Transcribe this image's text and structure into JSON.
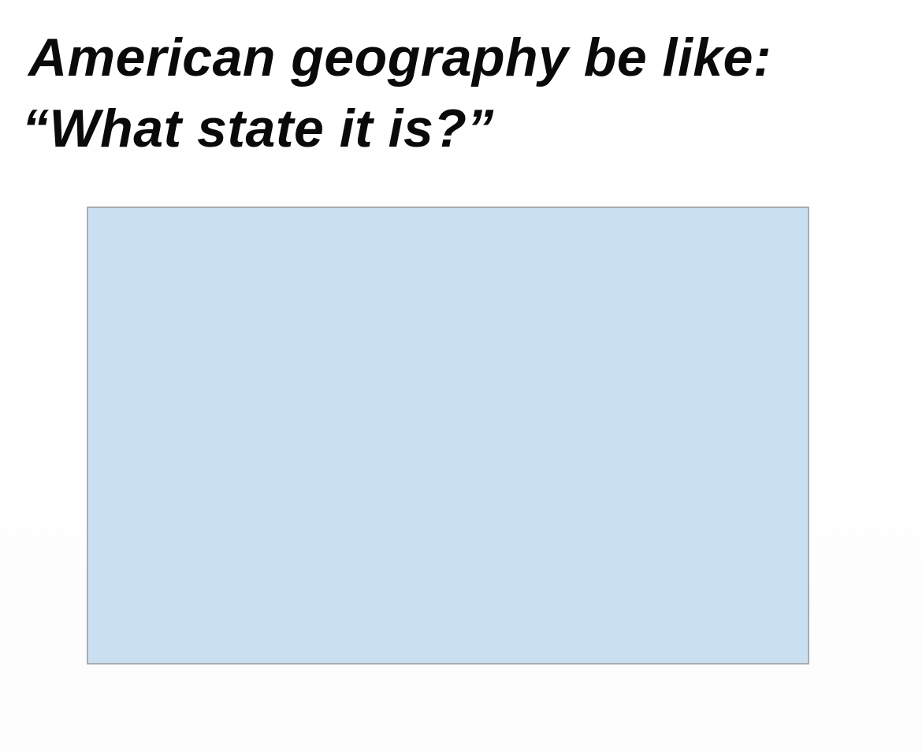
{
  "caption": {
    "line1": "American geography be like:",
    "line2": "“What state it is?”"
  },
  "state_shape": {
    "fill_color": "#cbdff3",
    "border_color": "#a9adb1"
  }
}
